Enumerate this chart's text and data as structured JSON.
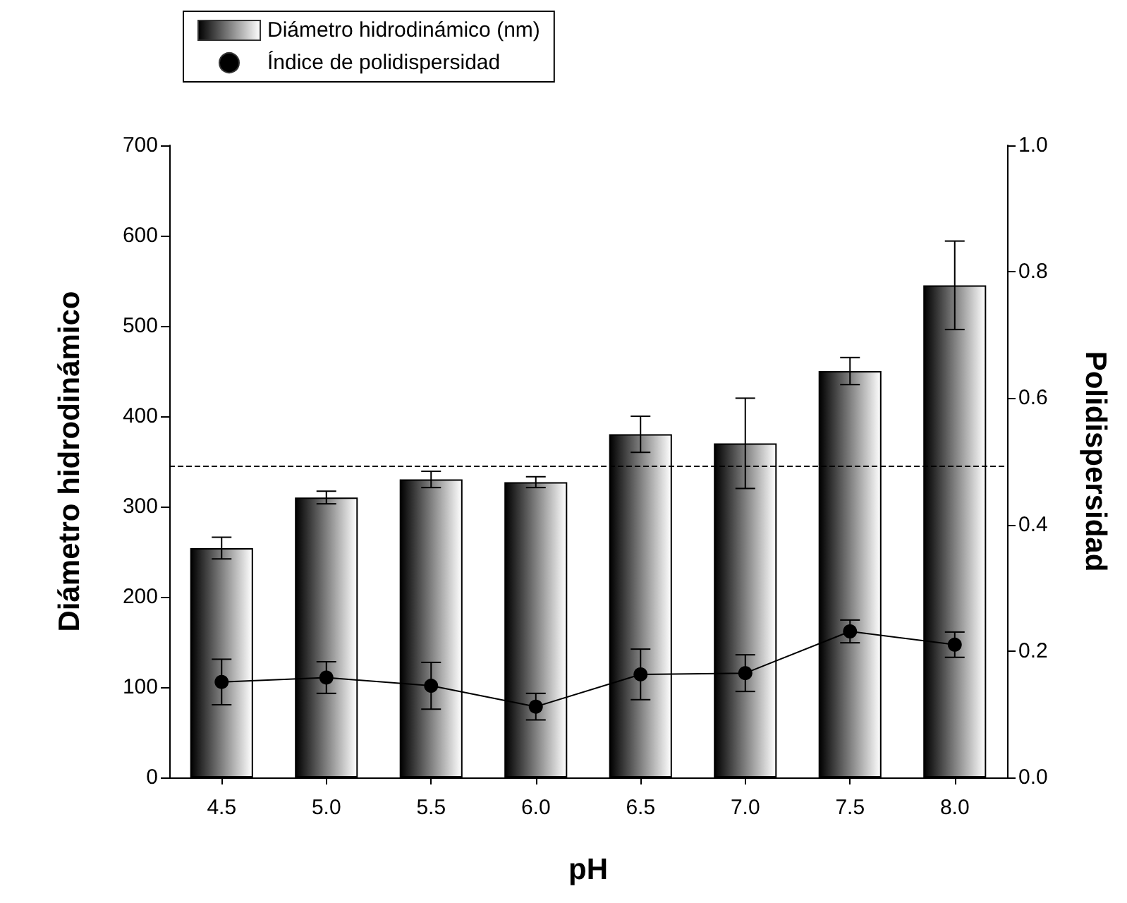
{
  "chart_data": {
    "type": "bar",
    "xlabel": "pH",
    "ylabel": "Diámetro hidrodinámico",
    "y2label": "Polidispersidad",
    "categories": [
      "4.5",
      "5.0",
      "5.5",
      "6.0",
      "6.5",
      "7.0",
      "7.5",
      "8.0"
    ],
    "series": [
      {
        "name": "Diámetro hidrodinámico (nm)",
        "color": "#000000",
        "values": [
          254,
          310,
          330,
          327,
          380,
          370,
          450,
          545
        ],
        "errors": [
          12,
          7,
          9,
          6,
          20,
          50,
          15,
          49
        ]
      },
      {
        "name": "Índice de polidispersidad",
        "type": "line",
        "axis": "y2",
        "color": "#000000",
        "marker": "circle",
        "line_style": "solid",
        "values": [
          0.151,
          0.158,
          0.145,
          0.112,
          0.163,
          0.165,
          0.231,
          0.21
        ],
        "errors": [
          0.036,
          0.025,
          0.037,
          0.021,
          0.04,
          0.029,
          0.018,
          0.02
        ]
      }
    ],
    "ylim": [
      0,
      700
    ],
    "yticks": [
      0,
      100,
      200,
      300,
      400,
      500,
      600,
      700
    ],
    "y2lim": [
      0,
      1
    ],
    "y2ticks": [
      {
        "value": 0,
        "label": "0.0"
      },
      {
        "value": 0.2,
        "label": "0.2"
      },
      {
        "value": 0.4,
        "label": "0.4"
      },
      {
        "value": 0.6,
        "label": "0.6"
      },
      {
        "value": 0.8,
        "label": "0.8"
      },
      {
        "value": 1,
        "label": "1.0"
      }
    ],
    "ref_lines": [
      {
        "axis": "y",
        "value": 345,
        "line_style": "dashed",
        "color": "#000000"
      }
    ],
    "grid": false,
    "legend": "top left"
  }
}
